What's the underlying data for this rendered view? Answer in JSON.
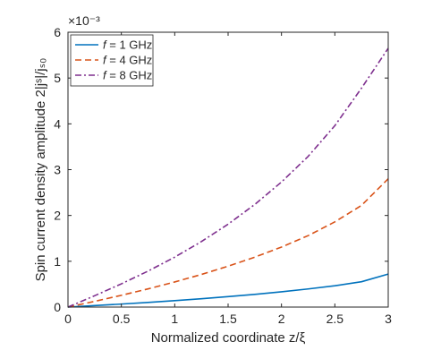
{
  "chart_data": {
    "type": "line",
    "xlabel": "Normalized coordinate z/ξ",
    "ylabel": "Spin current density amplitude 2|jˢ|/jₛ₀",
    "exponent_label": "×10⁻³",
    "xlim": [
      0,
      3
    ],
    "ylim": [
      0,
      0.006
    ],
    "xticks": [
      0,
      0.5,
      1,
      1.5,
      2,
      2.5,
      3
    ],
    "xtick_labels": [
      "0",
      "0.5",
      "1",
      "1.5",
      "2",
      "2.5",
      "3"
    ],
    "yticks": [
      0,
      0.001,
      0.002,
      0.003,
      0.004,
      0.005,
      0.006
    ],
    "ytick_labels": [
      "0",
      "1",
      "2",
      "3",
      "4",
      "5",
      "6"
    ],
    "grid": false,
    "legend_position": "top-left",
    "series": [
      {
        "name": "f = 1 GHz",
        "label_italic": "f",
        "label_rest": " = 1 GHz",
        "color": "#0072BD",
        "dash": "solid",
        "x": [
          0,
          0.25,
          0.5,
          0.75,
          1,
          1.25,
          1.5,
          1.75,
          2,
          2.25,
          2.5,
          2.75,
          3
        ],
        "y": [
          0,
          3.2e-05,
          6.6e-05,
          0.000101,
          0.00014,
          0.000182,
          0.000228,
          0.000278,
          0.000333,
          0.000396,
          0.000466,
          0.000553,
          0.00072
        ]
      },
      {
        "name": "f = 4 GHz",
        "label_italic": "f",
        "label_rest": " = 4 GHz",
        "color": "#D95319",
        "dash": "dashed",
        "x": [
          0,
          0.25,
          0.5,
          0.75,
          1,
          1.25,
          1.5,
          1.75,
          2,
          2.25,
          2.5,
          2.75,
          3
        ],
        "y": [
          0,
          0.000125,
          0.000257,
          0.000397,
          0.000548,
          0.000712,
          0.000893,
          0.00109,
          0.00131,
          0.00156,
          0.00186,
          0.00222,
          0.0028
        ]
      },
      {
        "name": "f = 8 GHz",
        "label_italic": "f",
        "label_rest": " = 8 GHz",
        "color": "#7E2F8E",
        "dash": "dashdot",
        "x": [
          0,
          0.25,
          0.5,
          0.75,
          1,
          1.25,
          1.5,
          1.75,
          2,
          2.25,
          2.5,
          2.75,
          3
        ],
        "y": [
          0,
          0.000248,
          0.000507,
          0.000785,
          0.00109,
          0.00143,
          0.00181,
          0.00224,
          0.00273,
          0.00329,
          0.00396,
          0.00478,
          0.00565
        ]
      }
    ]
  }
}
